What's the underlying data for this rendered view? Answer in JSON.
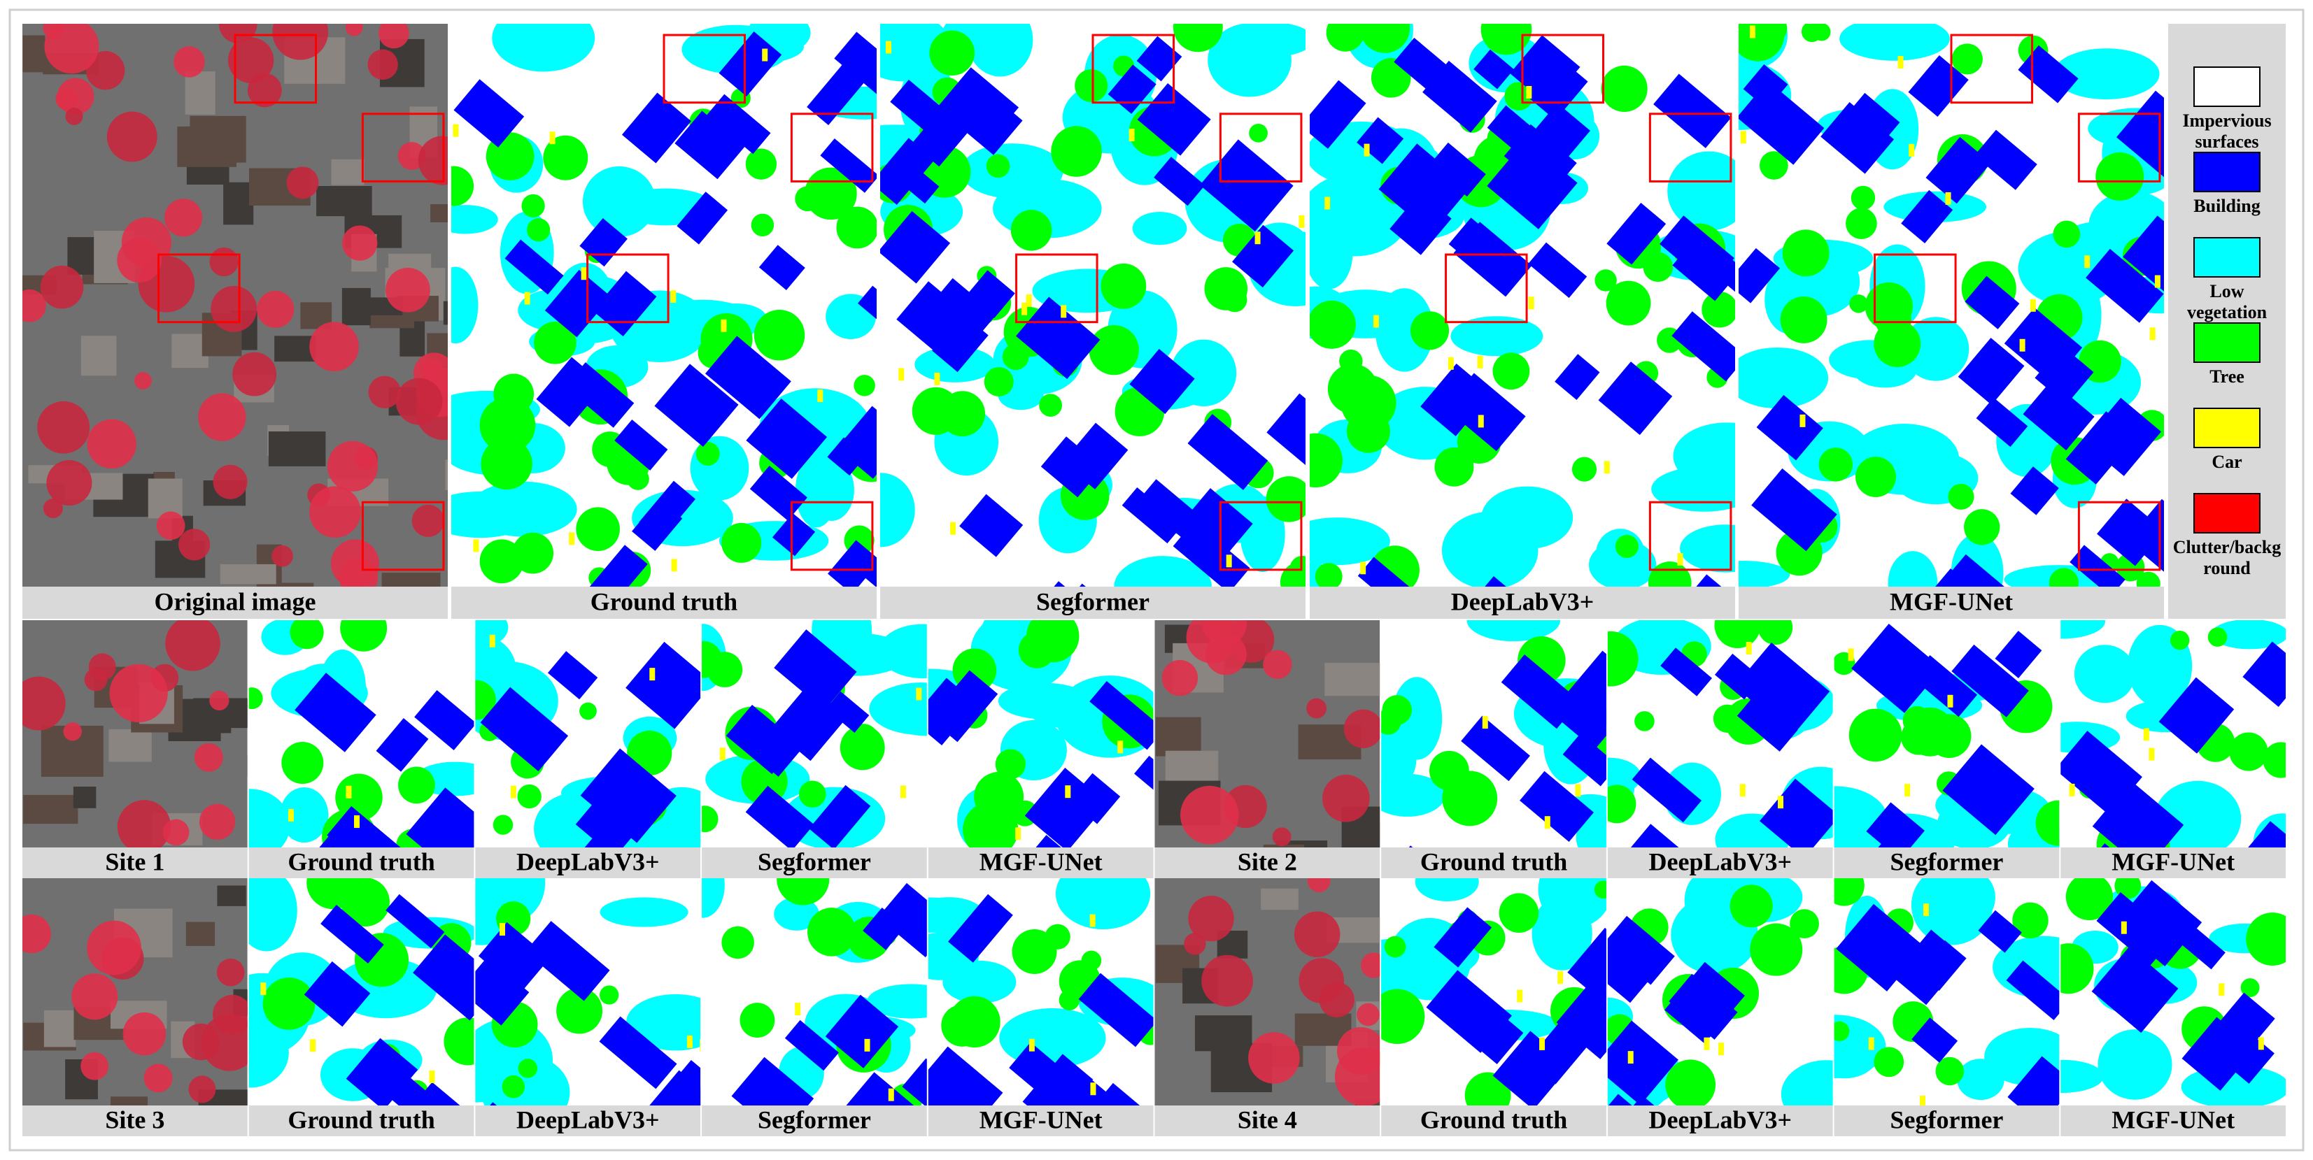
{
  "top": {
    "captions": [
      "Original image",
      "Ground truth",
      "Segformer",
      "DeepLabV3+",
      "MGF-UNet"
    ]
  },
  "legend": [
    {
      "label": "Impervious surfaces",
      "color": "#ffffff"
    },
    {
      "label": "Building",
      "color": "#0000ff"
    },
    {
      "label": "Low vegetation",
      "color": "#00ffff"
    },
    {
      "label": "Tree",
      "color": "#00ff00"
    },
    {
      "label": "Car",
      "color": "#ffff00"
    },
    {
      "label": "Clutter/background",
      "color": "#ff0000"
    }
  ],
  "rows": [
    {
      "captions": [
        "Site 1",
        "Ground truth",
        "DeepLabV3+",
        "Segformer",
        "MGF-UNet",
        "Site 2",
        "Ground truth",
        "DeepLabV3+",
        "Segformer",
        "MGF-UNet"
      ]
    },
    {
      "captions": [
        "Site 3",
        "Ground truth",
        "DeepLabV3+",
        "Segformer",
        "MGF-UNet",
        "Site 4",
        "Ground truth",
        "DeepLabV3+",
        "Segformer",
        "MGF-UNet"
      ]
    }
  ]
}
